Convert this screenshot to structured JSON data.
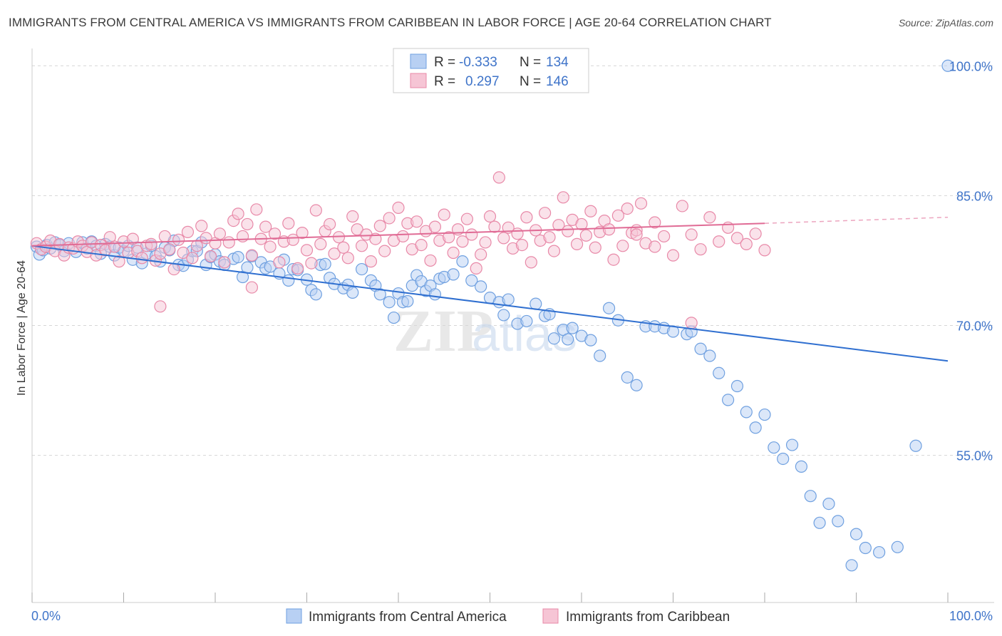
{
  "title": "IMMIGRANTS FROM CENTRAL AMERICA VS IMMIGRANTS FROM CARIBBEAN IN LABOR FORCE | AGE 20-64 CORRELATION CHART",
  "source": "Source: ZipAtlas.com",
  "watermark": {
    "zip": "ZIP",
    "atlas": "atlas"
  },
  "colors": {
    "blue": "#6fa0e0",
    "blue_fill": "#b8d0f3",
    "blue_line": "#2f6fd0",
    "pink": "#e889a8",
    "pink_fill": "#f6c5d5",
    "pink_line": "#e06b95",
    "tick_label": "#3f74c9",
    "grid": "#d6d6d6"
  },
  "legend": {
    "r_label": "R =",
    "n_label": "N =",
    "series": [
      {
        "r": "-0.333",
        "n": "134"
      },
      {
        "r": "0.297",
        "n": "146"
      }
    ]
  },
  "chart_data": {
    "type": "scatter",
    "title": "IMMIGRANTS FROM CENTRAL AMERICA VS IMMIGRANTS FROM CARIBBEAN IN LABOR FORCE | AGE 20-64 CORRELATION CHART",
    "xlabel": "",
    "ylabel": "In Labor Force | Age 20-64",
    "xlim": [
      0,
      100
    ],
    "ylim": [
      38,
      102
    ],
    "x_tick_labels": [
      "0.0%",
      "100.0%"
    ],
    "y_ticks": [
      55,
      70,
      85,
      100
    ],
    "y_tick_labels": [
      "55.0%",
      "70.0%",
      "85.0%",
      "100.0%"
    ],
    "legend_position": "bottom-center",
    "series": [
      {
        "name": "Immigrants from Central America",
        "r": -0.333,
        "n": 134,
        "trend": {
          "x": [
            0,
            100
          ],
          "y": [
            79.2,
            65.9
          ]
        },
        "points": [
          [
            0.5,
            79.1
          ],
          [
            0.8,
            78.2
          ],
          [
            1.2,
            78.7
          ],
          [
            1.6,
            79.3
          ],
          [
            2.0,
            78.9
          ],
          [
            2.5,
            79.6
          ],
          [
            3.0,
            79.3
          ],
          [
            3.5,
            78.6
          ],
          [
            4.0,
            79.5
          ],
          [
            4.8,
            78.5
          ],
          [
            5.5,
            79.6
          ],
          [
            6.0,
            78.9
          ],
          [
            6.5,
            79.7
          ],
          [
            7.0,
            79.2
          ],
          [
            7.5,
            78.3
          ],
          [
            8.0,
            79.4
          ],
          [
            8.5,
            79.1
          ],
          [
            9.0,
            78.1
          ],
          [
            9.5,
            79.0
          ],
          [
            10.0,
            78.6
          ],
          [
            10.5,
            79.2
          ],
          [
            11.0,
            77.6
          ],
          [
            11.5,
            79.0
          ],
          [
            12.0,
            77.2
          ],
          [
            12.5,
            78.3
          ],
          [
            13.0,
            79.2
          ],
          [
            13.5,
            78.0
          ],
          [
            14.0,
            77.4
          ],
          [
            14.5,
            79.0
          ],
          [
            15.0,
            78.7
          ],
          [
            15.5,
            79.8
          ],
          [
            16.0,
            77.0
          ],
          [
            16.5,
            76.9
          ],
          [
            17.0,
            77.6
          ],
          [
            17.5,
            78.6
          ],
          [
            18.0,
            78.6
          ],
          [
            18.5,
            79.6
          ],
          [
            19.0,
            77.0
          ],
          [
            19.5,
            77.9
          ],
          [
            20.0,
            78.2
          ],
          [
            20.5,
            77.4
          ],
          [
            21.0,
            77.0
          ],
          [
            22.0,
            77.7
          ],
          [
            22.5,
            77.9
          ],
          [
            23.0,
            75.6
          ],
          [
            23.5,
            76.7
          ],
          [
            24.0,
            78.0
          ],
          [
            25.0,
            77.3
          ],
          [
            25.5,
            76.6
          ],
          [
            26.0,
            76.8
          ],
          [
            27.0,
            76.0
          ],
          [
            27.5,
            77.6
          ],
          [
            28.0,
            75.2
          ],
          [
            28.5,
            76.5
          ],
          [
            29.0,
            76.4
          ],
          [
            30.0,
            75.3
          ],
          [
            30.5,
            74.1
          ],
          [
            31.0,
            73.6
          ],
          [
            31.5,
            77.0
          ],
          [
            32.0,
            77.1
          ],
          [
            32.5,
            75.5
          ],
          [
            33.0,
            74.8
          ],
          [
            34.0,
            74.3
          ],
          [
            34.5,
            74.7
          ],
          [
            35.0,
            73.8
          ],
          [
            36.0,
            76.5
          ],
          [
            37.0,
            75.2
          ],
          [
            37.5,
            74.6
          ],
          [
            38.0,
            73.6
          ],
          [
            39.0,
            72.7
          ],
          [
            39.5,
            70.9
          ],
          [
            40.0,
            73.7
          ],
          [
            40.5,
            72.7
          ],
          [
            41.0,
            72.8
          ],
          [
            41.5,
            74.6
          ],
          [
            42.0,
            75.8
          ],
          [
            42.5,
            75.1
          ],
          [
            43.0,
            74.0
          ],
          [
            43.5,
            74.6
          ],
          [
            44.0,
            73.6
          ],
          [
            44.5,
            75.4
          ],
          [
            45.0,
            75.6
          ],
          [
            46.0,
            75.9
          ],
          [
            47.0,
            77.4
          ],
          [
            48.0,
            75.2
          ],
          [
            49.0,
            74.5
          ],
          [
            50.0,
            73.2
          ],
          [
            51.0,
            72.7
          ],
          [
            51.5,
            71.2
          ],
          [
            52.0,
            73.0
          ],
          [
            53.0,
            70.2
          ],
          [
            54.0,
            70.5
          ],
          [
            55.0,
            72.5
          ],
          [
            56.0,
            71.1
          ],
          [
            56.5,
            71.3
          ],
          [
            57.0,
            68.5
          ],
          [
            58.0,
            69.5
          ],
          [
            58.5,
            68.4
          ],
          [
            59.0,
            69.7
          ],
          [
            60.0,
            68.8
          ],
          [
            61.0,
            68.3
          ],
          [
            62.0,
            66.5
          ],
          [
            63.0,
            72.0
          ],
          [
            64.0,
            70.6
          ],
          [
            65.0,
            64.0
          ],
          [
            66.0,
            63.1
          ],
          [
            67.0,
            69.9
          ],
          [
            68.0,
            69.9
          ],
          [
            69.0,
            69.7
          ],
          [
            70.0,
            69.3
          ],
          [
            71.5,
            69.0
          ],
          [
            72.0,
            69.3
          ],
          [
            73.0,
            67.3
          ],
          [
            74.0,
            66.5
          ],
          [
            75.0,
            64.5
          ],
          [
            76.0,
            61.4
          ],
          [
            77.0,
            63.0
          ],
          [
            78.0,
            60.0
          ],
          [
            79.0,
            58.2
          ],
          [
            80.0,
            59.7
          ],
          [
            81.0,
            55.9
          ],
          [
            82.0,
            54.6
          ],
          [
            83.0,
            56.2
          ],
          [
            84.0,
            53.7
          ],
          [
            85.0,
            50.3
          ],
          [
            86.0,
            47.2
          ],
          [
            87.0,
            49.4
          ],
          [
            88.0,
            47.4
          ],
          [
            89.5,
            42.3
          ],
          [
            90.0,
            45.9
          ],
          [
            91.0,
            44.3
          ],
          [
            92.5,
            43.8
          ],
          [
            94.5,
            44.4
          ],
          [
            96.5,
            56.1
          ],
          [
            100.0,
            100.0
          ]
        ]
      },
      {
        "name": "Immigrants from Caribbean",
        "r": 0.297,
        "n": 146,
        "trend": {
          "x": [
            0,
            80
          ],
          "y": [
            79.2,
            81.8
          ]
        },
        "trend_dashed": {
          "x": [
            80,
            100
          ],
          "y": [
            81.8,
            82.5
          ]
        },
        "points": [
          [
            0.5,
            79.5
          ],
          [
            1.0,
            78.8
          ],
          [
            1.5,
            79.1
          ],
          [
            2.0,
            79.8
          ],
          [
            2.5,
            78.6
          ],
          [
            3.0,
            79.4
          ],
          [
            3.5,
            78.1
          ],
          [
            4.0,
            79.0
          ],
          [
            4.5,
            78.9
          ],
          [
            5.0,
            79.7
          ],
          [
            5.5,
            79.2
          ],
          [
            6.0,
            78.5
          ],
          [
            6.5,
            79.6
          ],
          [
            7.0,
            78.1
          ],
          [
            7.5,
            79.3
          ],
          [
            8.0,
            78.7
          ],
          [
            8.5,
            80.2
          ],
          [
            9.0,
            79.1
          ],
          [
            9.5,
            77.4
          ],
          [
            10.0,
            79.7
          ],
          [
            10.5,
            78.4
          ],
          [
            11.0,
            80.0
          ],
          [
            11.5,
            78.6
          ],
          [
            12.0,
            77.8
          ],
          [
            12.5,
            79.2
          ],
          [
            13.0,
            79.4
          ],
          [
            13.5,
            77.5
          ],
          [
            14.0,
            78.3
          ],
          [
            14.5,
            80.3
          ],
          [
            15.0,
            78.8
          ],
          [
            15.5,
            76.5
          ],
          [
            16.0,
            79.9
          ],
          [
            16.5,
            78.4
          ],
          [
            17.0,
            80.8
          ],
          [
            17.5,
            77.8
          ],
          [
            18.0,
            79.2
          ],
          [
            18.5,
            81.5
          ],
          [
            19.0,
            80.1
          ],
          [
            19.5,
            78.0
          ],
          [
            20.0,
            79.5
          ],
          [
            20.5,
            80.6
          ],
          [
            21.0,
            77.3
          ],
          [
            21.5,
            79.6
          ],
          [
            22.0,
            82.1
          ],
          [
            22.5,
            82.9
          ],
          [
            23.0,
            80.3
          ],
          [
            23.5,
            81.7
          ],
          [
            24.0,
            78.1
          ],
          [
            24.5,
            83.4
          ],
          [
            25.0,
            80.0
          ],
          [
            25.5,
            81.4
          ],
          [
            26.0,
            79.1
          ],
          [
            26.5,
            80.6
          ],
          [
            27.0,
            77.3
          ],
          [
            27.5,
            79.7
          ],
          [
            28.0,
            81.8
          ],
          [
            28.5,
            79.9
          ],
          [
            29.0,
            76.6
          ],
          [
            29.5,
            80.7
          ],
          [
            30.0,
            78.7
          ],
          [
            30.5,
            77.2
          ],
          [
            31.0,
            83.3
          ],
          [
            31.5,
            79.4
          ],
          [
            32.0,
            80.9
          ],
          [
            32.5,
            81.7
          ],
          [
            33.0,
            78.3
          ],
          [
            33.5,
            80.2
          ],
          [
            34.0,
            79.0
          ],
          [
            34.5,
            77.8
          ],
          [
            35.0,
            82.6
          ],
          [
            35.5,
            81.1
          ],
          [
            36.0,
            79.2
          ],
          [
            36.5,
            80.5
          ],
          [
            37.0,
            77.4
          ],
          [
            37.5,
            80.0
          ],
          [
            38.0,
            81.5
          ],
          [
            38.5,
            78.6
          ],
          [
            39.0,
            82.4
          ],
          [
            39.5,
            79.8
          ],
          [
            40.0,
            83.6
          ],
          [
            40.5,
            80.3
          ],
          [
            41.0,
            81.8
          ],
          [
            41.5,
            78.8
          ],
          [
            42.0,
            82.0
          ],
          [
            42.5,
            79.3
          ],
          [
            43.0,
            80.9
          ],
          [
            43.5,
            77.5
          ],
          [
            44.0,
            81.4
          ],
          [
            44.5,
            79.8
          ],
          [
            45.0,
            82.8
          ],
          [
            45.5,
            80.2
          ],
          [
            46.0,
            78.4
          ],
          [
            46.5,
            81.1
          ],
          [
            47.0,
            79.7
          ],
          [
            47.5,
            82.3
          ],
          [
            48.0,
            80.5
          ],
          [
            48.5,
            76.6
          ],
          [
            49.0,
            78.2
          ],
          [
            49.5,
            79.6
          ],
          [
            50.0,
            82.6
          ],
          [
            50.5,
            81.4
          ],
          [
            51.0,
            87.1
          ],
          [
            51.5,
            80.1
          ],
          [
            52.0,
            81.3
          ],
          [
            52.5,
            78.9
          ],
          [
            53.0,
            80.6
          ],
          [
            53.5,
            79.3
          ],
          [
            54.0,
            82.5
          ],
          [
            54.5,
            77.3
          ],
          [
            55.0,
            81.0
          ],
          [
            55.5,
            79.8
          ],
          [
            56.0,
            83.0
          ],
          [
            56.5,
            80.2
          ],
          [
            57.0,
            78.6
          ],
          [
            57.5,
            81.6
          ],
          [
            58.0,
            84.8
          ],
          [
            58.5,
            80.9
          ],
          [
            59.0,
            82.2
          ],
          [
            59.5,
            79.4
          ],
          [
            60.0,
            81.7
          ],
          [
            60.5,
            80.4
          ],
          [
            61.0,
            83.2
          ],
          [
            61.5,
            79.0
          ],
          [
            62.0,
            80.8
          ],
          [
            62.5,
            82.1
          ],
          [
            63.0,
            81.1
          ],
          [
            63.5,
            77.6
          ],
          [
            64.0,
            82.7
          ],
          [
            64.5,
            79.2
          ],
          [
            65.0,
            83.5
          ],
          [
            65.5,
            80.7
          ],
          [
            66.0,
            81.0
          ],
          [
            66.5,
            84.1
          ],
          [
            67.0,
            79.5
          ],
          [
            68.0,
            81.9
          ],
          [
            69.0,
            80.3
          ],
          [
            70.0,
            78.1
          ],
          [
            71.0,
            83.8
          ],
          [
            72.0,
            80.5
          ],
          [
            73.0,
            78.8
          ],
          [
            74.0,
            82.5
          ],
          [
            75.0,
            79.7
          ],
          [
            76.0,
            81.3
          ],
          [
            77.0,
            80.1
          ],
          [
            78.0,
            79.4
          ],
          [
            79.0,
            80.6
          ],
          [
            80.0,
            78.7
          ],
          [
            72.0,
            70.3
          ],
          [
            14.0,
            72.2
          ],
          [
            24.0,
            74.4
          ],
          [
            66.0,
            80.5
          ],
          [
            68.0,
            79.1
          ]
        ]
      }
    ]
  },
  "bottom_legend": [
    "Immigrants from Central America",
    "Immigrants from Caribbean"
  ]
}
